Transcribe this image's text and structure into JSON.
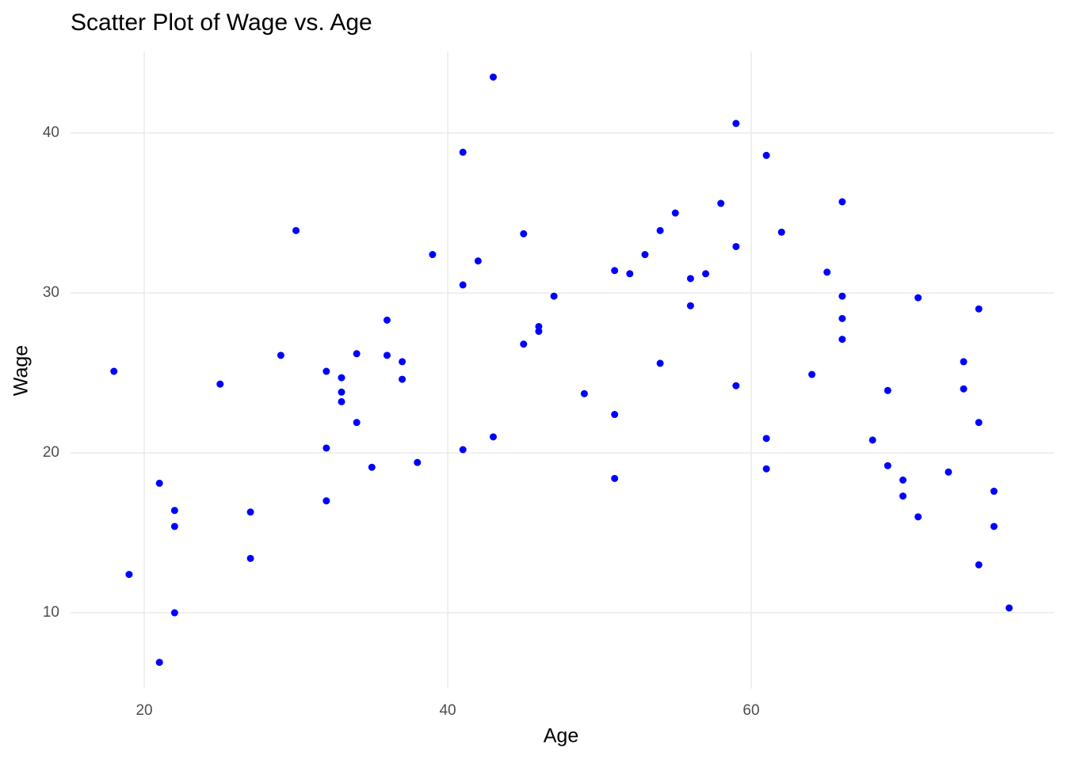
{
  "chart_data": {
    "type": "scatter",
    "title": "Scatter Plot of Wage vs. Age",
    "x_label": "Age",
    "y_label": "Wage",
    "color": "#0000ff",
    "grid": true,
    "xlim": [
      15.14,
      79.95
    ],
    "ylim": [
      5.25,
      45.1
    ],
    "xticks": [
      20,
      40,
      60
    ],
    "yticks": [
      10,
      20,
      30,
      40
    ],
    "x": [
      18,
      19,
      21,
      21,
      22,
      22,
      22,
      25,
      27,
      27,
      29,
      30,
      32,
      32,
      32,
      33,
      33,
      33,
      34,
      34,
      35,
      36,
      36,
      37,
      37,
      38,
      39,
      41,
      41,
      41,
      42,
      43,
      43,
      45,
      45,
      46,
      46,
      47,
      49,
      51,
      51,
      51,
      52,
      53,
      54,
      54,
      55,
      56,
      56,
      57,
      58,
      59,
      59,
      59,
      61,
      61,
      61,
      62,
      64,
      65,
      66,
      66,
      66,
      66,
      68,
      69,
      69,
      70,
      70,
      71,
      71,
      73,
      74,
      74,
      75,
      75,
      75,
      76,
      76,
      77
    ],
    "y": [
      25.1,
      12.4,
      18.1,
      6.9,
      16.4,
      15.4,
      10.0,
      24.3,
      16.3,
      13.4,
      26.1,
      33.9,
      25.1,
      20.3,
      17.0,
      24.7,
      23.8,
      23.2,
      26.2,
      21.9,
      19.1,
      28.3,
      26.1,
      25.7,
      24.6,
      19.4,
      32.4,
      38.8,
      30.5,
      20.2,
      32.0,
      43.5,
      21.0,
      33.7,
      26.8,
      27.9,
      27.6,
      29.8,
      23.7,
      31.4,
      22.4,
      18.4,
      31.2,
      32.4,
      33.9,
      25.6,
      35.0,
      30.9,
      29.2,
      31.2,
      35.6,
      40.6,
      32.9,
      24.2,
      38.6,
      20.9,
      19.0,
      33.8,
      24.9,
      31.3,
      35.7,
      29.8,
      28.4,
      27.1,
      20.8,
      23.9,
      19.2,
      18.3,
      17.3,
      29.7,
      16.0,
      18.8,
      25.7,
      24.0,
      29.0,
      21.9,
      13.0,
      17.6,
      15.4,
      10.3
    ]
  }
}
